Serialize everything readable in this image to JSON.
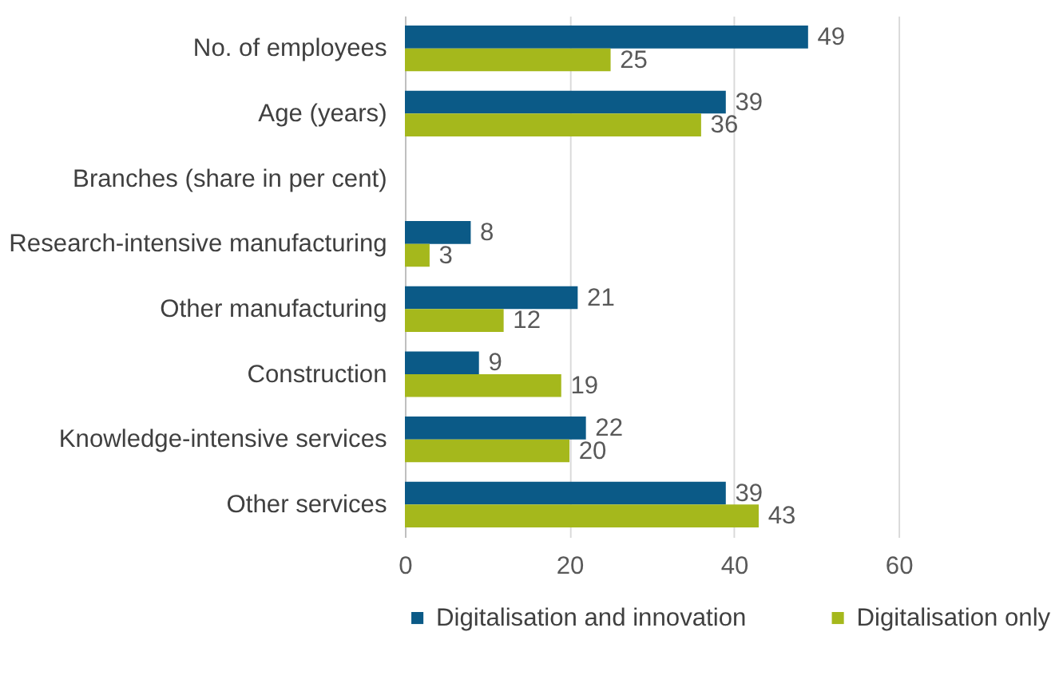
{
  "chart_data": {
    "type": "bar",
    "orientation": "horizontal",
    "categories": [
      "No. of employees",
      "Age (years)",
      "Branches (share in per cent)",
      "Research-intensive manufacturing",
      "Other manufacturing",
      "Construction",
      "Knowledge-intensive services",
      "Other services"
    ],
    "series": [
      {
        "name": "Digitalisation and innovation",
        "color": "#0b5a87",
        "values": [
          49,
          39,
          null,
          8,
          21,
          9,
          22,
          39
        ]
      },
      {
        "name": "Digitalisation only",
        "color": "#a5b81c",
        "values": [
          25,
          36,
          null,
          3,
          12,
          19,
          20,
          43
        ]
      }
    ],
    "xlim": [
      0,
      60
    ],
    "xticks": [
      0,
      20,
      40,
      60
    ],
    "grid": "x",
    "legend": "bottom",
    "data_labels": true
  }
}
